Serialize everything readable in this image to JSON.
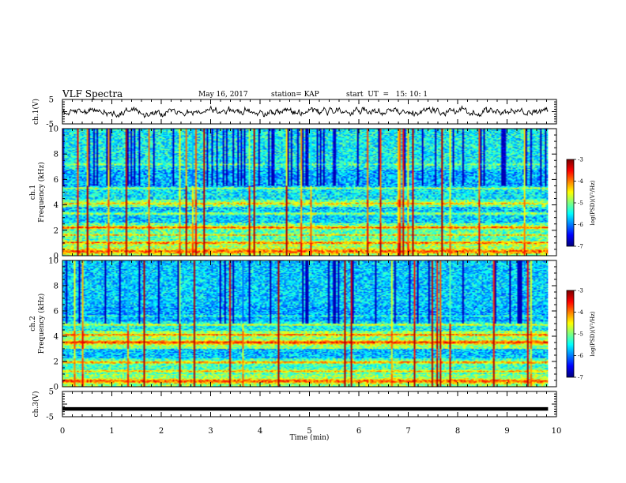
{
  "header": {
    "title": "VLF Spectra",
    "date": "May 16, 2017",
    "station": "station= KAP",
    "start": "start  UT  =   15: 10: 1"
  },
  "chart_data": [
    {
      "type": "line",
      "panel": "waveform-top",
      "ylabel": "ch.1(V)",
      "yticks": [
        "5",
        "-5"
      ],
      "ylim": [
        -5,
        5
      ],
      "xlim": [
        0,
        10
      ],
      "series": [
        {
          "x_end": 9.83,
          "approx_range": [
            -2.5,
            2.5
          ]
        }
      ]
    },
    {
      "type": "heatmap",
      "panel": "spectrogram-ch1",
      "ylabel": "ch.1",
      "ylabel2": "Frequency (kHz)",
      "yticks": [
        "0",
        "2",
        "4",
        "6",
        "8",
        "10"
      ],
      "ylim": [
        0,
        10
      ],
      "xlim": [
        0,
        10
      ],
      "data_x_end": 9.83,
      "colorbar": {
        "label": "log(PSD)(V²/Hz)",
        "ticks": [
          "-3",
          "-4",
          "-5",
          "-6",
          "-7"
        ],
        "range": [
          -7,
          -3
        ]
      }
    },
    {
      "type": "heatmap",
      "panel": "spectrogram-ch2",
      "ylabel": "ch.2",
      "ylabel2": "Frequency (kHz)",
      "yticks": [
        "0",
        "2",
        "4",
        "6",
        "8",
        "10"
      ],
      "ylim": [
        0,
        10
      ],
      "xlim": [
        0,
        10
      ],
      "data_x_end": 9.83,
      "colorbar": {
        "label": "log(PSD)(V²/Hz)",
        "ticks": [
          "-3",
          "-4",
          "-5",
          "-6",
          "-7"
        ],
        "range": [
          -7,
          -3
        ]
      }
    },
    {
      "type": "line",
      "panel": "waveform-bottom",
      "ylabel": "ch.3(V)",
      "yticks": [
        "5",
        "-5"
      ],
      "ylim": [
        -5,
        5
      ],
      "xlim": [
        0,
        10
      ],
      "series": [
        {
          "x_end": 9.83,
          "constant_value": -1.9
        }
      ]
    }
  ],
  "xaxis": {
    "label": "Time (min)",
    "ticks": [
      "0",
      "1",
      "2",
      "3",
      "4",
      "5",
      "6",
      "7",
      "8",
      "9",
      "10"
    ]
  }
}
